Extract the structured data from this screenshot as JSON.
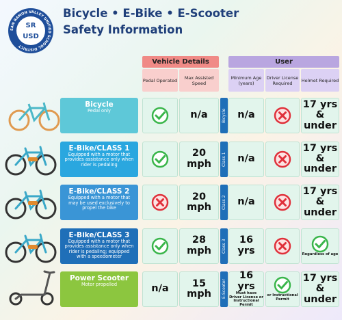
{
  "logo": {
    "top": "SR",
    "bottom": "USD",
    "ring": "SAN RAMON VALLEY UNIFIED SCHOOL DISTRICT"
  },
  "header": {
    "title_line1": "Bicycle • E-Bike • E-Scooter",
    "title_line2": "Safety Information"
  },
  "groups": [
    "Vehicle Details",
    "User"
  ],
  "columns": [
    "Pedal Operated",
    "Max Assisted Speed",
    "Minimum Age (years)",
    "Driver License Required",
    "Helmet Required"
  ],
  "rows": [
    {
      "name": "Bicycle",
      "description": "Pedal only",
      "tag": "Bicycle",
      "cells": [
        {
          "icon": "check"
        },
        {
          "text": "n/a"
        },
        {
          "text": "n/a"
        },
        {
          "icon": "cross"
        },
        {
          "text": "17 yrs & under"
        }
      ]
    },
    {
      "name": "E-Bike/CLASS 1",
      "description": "Equipped with a motor that provides assistance only when rider is pedaling",
      "tag": "Class 1",
      "cells": [
        {
          "icon": "check"
        },
        {
          "text": "20 mph"
        },
        {
          "text": "n/a"
        },
        {
          "icon": "cross"
        },
        {
          "text": "17 yrs & under"
        }
      ]
    },
    {
      "name": "E-Bike/CLASS 2",
      "description": "Equipped with a motor that may be used exclusively to propel the bike",
      "tag": "Class 2",
      "cells": [
        {
          "icon": "cross"
        },
        {
          "text": "20 mph"
        },
        {
          "text": "n/a"
        },
        {
          "icon": "cross"
        },
        {
          "text": "17 yrs & under"
        }
      ]
    },
    {
      "name": "E-Bike/CLASS 3",
      "description": "Equipped with a motor that provides assistance only when rider is pedaling; equipped with a speedometer",
      "tag": "Class 3",
      "cells": [
        {
          "icon": "check"
        },
        {
          "text": "28 mph"
        },
        {
          "text": "16 yrs"
        },
        {
          "icon": "cross"
        },
        {
          "icon": "check",
          "note": "Regardless of age"
        }
      ]
    },
    {
      "name": "Power Scooter",
      "description": "Motor propelled",
      "tag": "E-Scooter",
      "cells": [
        {
          "text": "n/a"
        },
        {
          "text": "15 mph"
        },
        {
          "text": "16 yrs",
          "note": "Must have Driver License or Instructional Permit"
        },
        {
          "icon": "check",
          "note": "or Instructional Permit"
        },
        {
          "text": "17 yrs & under"
        }
      ]
    }
  ]
}
